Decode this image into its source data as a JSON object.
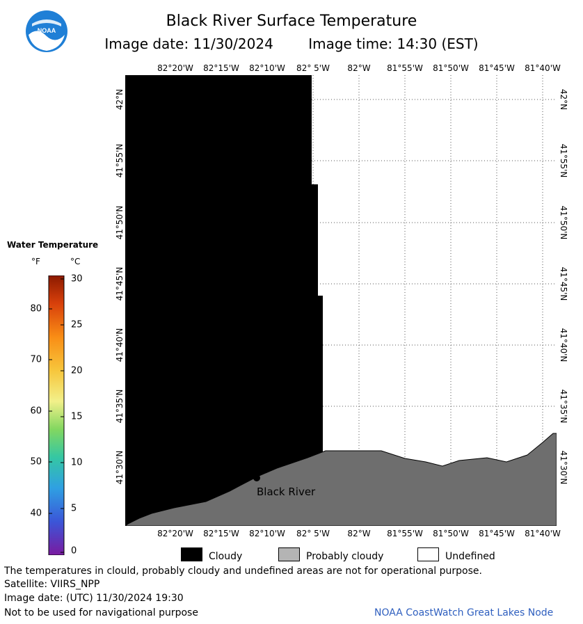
{
  "header": {
    "title": "Black River Surface Temperature",
    "image_date": "Image date: 11/30/2024",
    "image_time": "Image time: 14:30 (EST)"
  },
  "logo": {
    "text": "NOAA"
  },
  "map": {
    "lon_labels": [
      "82°20'W",
      "82°15'W",
      "82°10'W",
      "82° 5'W",
      "82°W",
      "81°55'W",
      "81°50'W",
      "81°45'W",
      "81°40'W"
    ],
    "lat_labels": [
      "42°N",
      "41°55'N",
      "41°50'N",
      "41°45'N",
      "41°40'N",
      "41°35'N",
      "41°30'N"
    ],
    "place": {
      "name": "Black River"
    },
    "colors": {
      "cloudy": "#000000",
      "land": "#6e6e6e",
      "water_undefined": "#ffffff",
      "grid": "#555555"
    }
  },
  "legend": {
    "title": "Water Temperature",
    "unit_f": "°F",
    "unit_c": "°C",
    "f_ticks": [
      "80",
      "70",
      "60",
      "50",
      "40"
    ],
    "c_ticks": [
      "30",
      "25",
      "20",
      "15",
      "10",
      "5",
      "0"
    ],
    "range_c": [
      0,
      30
    ]
  },
  "key": {
    "items": [
      {
        "label": "Cloudy",
        "color": "#000000"
      },
      {
        "label": "Probably cloudy",
        "color": "#b4b4b4"
      },
      {
        "label": "Undefined",
        "color": "#ffffff"
      }
    ]
  },
  "footer": {
    "disclaimer": "The temperatures in clould, probably cloudy and undefined areas are not for operational purpose.",
    "satellite": "Satellite: VIIRS_NPP",
    "utc_date": "Image date: (UTC) 11/30/2024  19:30",
    "nav_warning": "Not to be used for navigational purpose",
    "credit": "NOAA CoastWatch Great Lakes Node"
  }
}
